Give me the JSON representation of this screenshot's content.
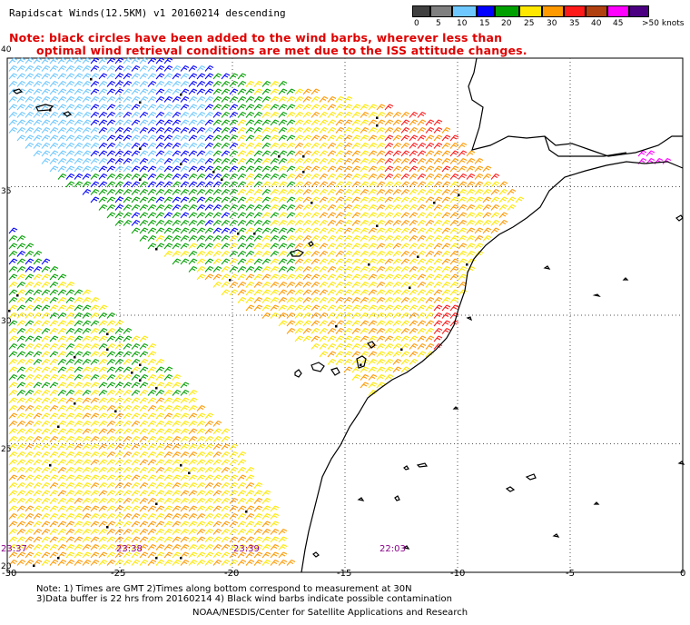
{
  "title": "Rapidscat Winds(12.5KM) v1 20160214 descending",
  "note": {
    "line1": "Note: black circles have been added to the wind barbs, wherever less than",
    "line2": "optimal wind retrieval conditions are met due to the ISS attitude changes."
  },
  "legend": {
    "unit": "knots",
    "labels": [
      "0",
      "5",
      "10",
      "15",
      "20",
      "25",
      "30",
      "35",
      "40",
      "45",
      ">50 knots"
    ],
    "colors": [
      "#404040",
      "#7f7f7f",
      "#6ec8ff",
      "#0000ff",
      "#00a000",
      "#ffe800",
      "#ff9900",
      "#ff1a1a",
      "#b04010",
      "#ff00ff",
      "#4b0082"
    ]
  },
  "axes": {
    "lat_labels": [
      "40",
      "35",
      "30",
      "25",
      "20"
    ],
    "lon_labels": [
      "-30",
      "-25",
      "-20",
      "-15",
      "-10",
      "-5",
      "0"
    ]
  },
  "pass_times": [
    "23:37",
    "23:38",
    "23:39",
    "22:03"
  ],
  "footer": {
    "line1": "Note: 1) Times are GMT 2)Times along bottom correspond to measurement at 30N",
    "line2": "3)Data buffer is 22 hrs from 20160214 4) Black wind barbs indicate possible contamination",
    "credit": "NOAA/NESDIS/Center for Satellite Applications and Research"
  },
  "map": {
    "projection": "lat-lon",
    "lat_range": [
      20,
      40
    ],
    "lon_range": [
      -30,
      0
    ],
    "gridlines": "dotted every 5 degrees",
    "coastline_color": "#000000"
  }
}
